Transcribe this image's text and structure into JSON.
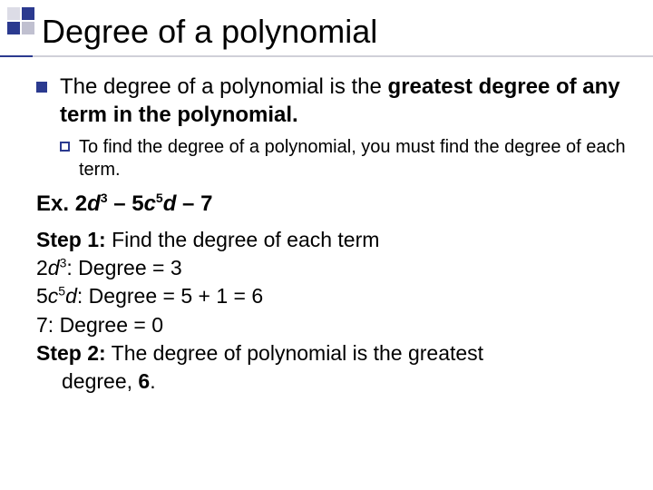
{
  "colors": {
    "accent": "#2b3a8f",
    "muted": "#c0c0d0",
    "light": "#dcdce6",
    "background": "#ffffff",
    "text": "#000000"
  },
  "title": "Degree of a polynomial",
  "bullet_main_1": "The degree of a polynomial is the ",
  "bullet_main_bold": "greatest degree of any term in the polynomial.",
  "sub_bullet": "To find the degree of a polynomial, you must find the degree of each term.",
  "example": {
    "prefix": "Ex. ",
    "expr_p1": "2",
    "expr_v1": "d",
    "expr_e1": "3",
    "expr_p2": " – 5",
    "expr_v2": "c",
    "expr_e2": "5",
    "expr_v3": "d",
    "expr_p3": " – 7"
  },
  "steps": {
    "step1_label": "Step 1:",
    "step1_text": " Find the degree of each term",
    "line2_a": "2",
    "line2_v": "d",
    "line2_e": "3",
    "line2_b": ": Degree = 3",
    "line3_a": "5",
    "line3_v1": "c",
    "line3_e": "5",
    "line3_v2": "d",
    "line3_b": ": Degree =  5 + 1 = 6",
    "line4": "7: Degree = 0",
    "step2_label": "Step 2:",
    "step2_text": " The degree of polynomial is the greatest",
    "step2_cont": "degree, ",
    "step2_answer": "6",
    "step2_dot": "."
  }
}
